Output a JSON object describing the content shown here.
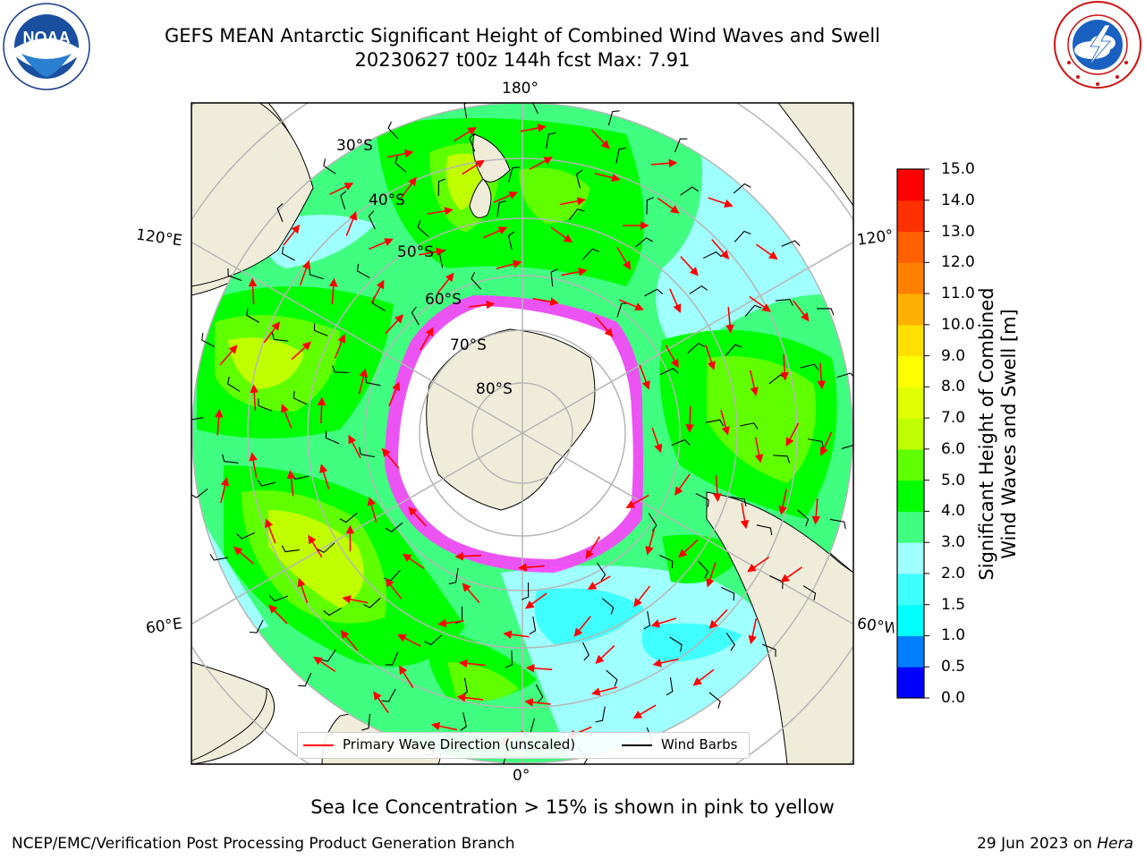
{
  "header": {
    "title_line1": "GEFS MEAN Antarctic Significant Height of Combined Wind Waves and Swell",
    "title_line2": "20230627 t00z 144h fcst   Max: 7.91"
  },
  "logos": {
    "left_name": "noaa-logo",
    "left_text": "NOAA",
    "right_name": "nws-logo"
  },
  "map": {
    "projection": "south-polar-stereographic",
    "lon_labels": {
      "top": "180°",
      "bottom": "0°",
      "upper_left": "120°E",
      "upper_right": "120°W",
      "lower_left": "60°E",
      "lower_right": "60°W"
    },
    "lat_labels": [
      "30°S",
      "40°S",
      "50°S",
      "60°S",
      "70°S",
      "80°S"
    ],
    "colors": {
      "land": "#efedda",
      "sea_ice_fill": "#ffffff",
      "sea_ice_edge_pink": "#ff40ff",
      "grid": "#b5b5b5",
      "wave_arrow": "#ff0000",
      "wind_barb": "#000000"
    }
  },
  "legend": {
    "wave_label": "Primary Wave Direction (unscaled)",
    "wind_label": "Wind Barbs",
    "wave_color": "#ff0000",
    "wind_color": "#000000"
  },
  "colorbar": {
    "label_line1": "Significant Height of Combined",
    "label_line2": "Wind Waves and Swell [m]",
    "ticks": [
      "0.0",
      "0.5",
      "1.0",
      "1.5",
      "2.0",
      "3.0",
      "4.0",
      "5.0",
      "6.0",
      "7.0",
      "8.0",
      "9.0",
      "10.0",
      "11.0",
      "12.0",
      "13.0",
      "14.0",
      "15.0"
    ],
    "colors": [
      "#0000ff",
      "#0080ff",
      "#00ffff",
      "#40ffff",
      "#a0ffff",
      "#40ff80",
      "#00ff00",
      "#60ff00",
      "#c0ff00",
      "#e0ff00",
      "#ffff00",
      "#ffe000",
      "#ffb000",
      "#ff8000",
      "#ff6000",
      "#ff3000",
      "#ff0000"
    ]
  },
  "caption": "Sea Ice Concentration > 15% is shown in pink to yellow",
  "footer": {
    "left": "NCEP/EMC/Verification Post Processing Product Generation Branch",
    "right_date": "29 Jun 2023 on ",
    "right_host": "Hera"
  }
}
